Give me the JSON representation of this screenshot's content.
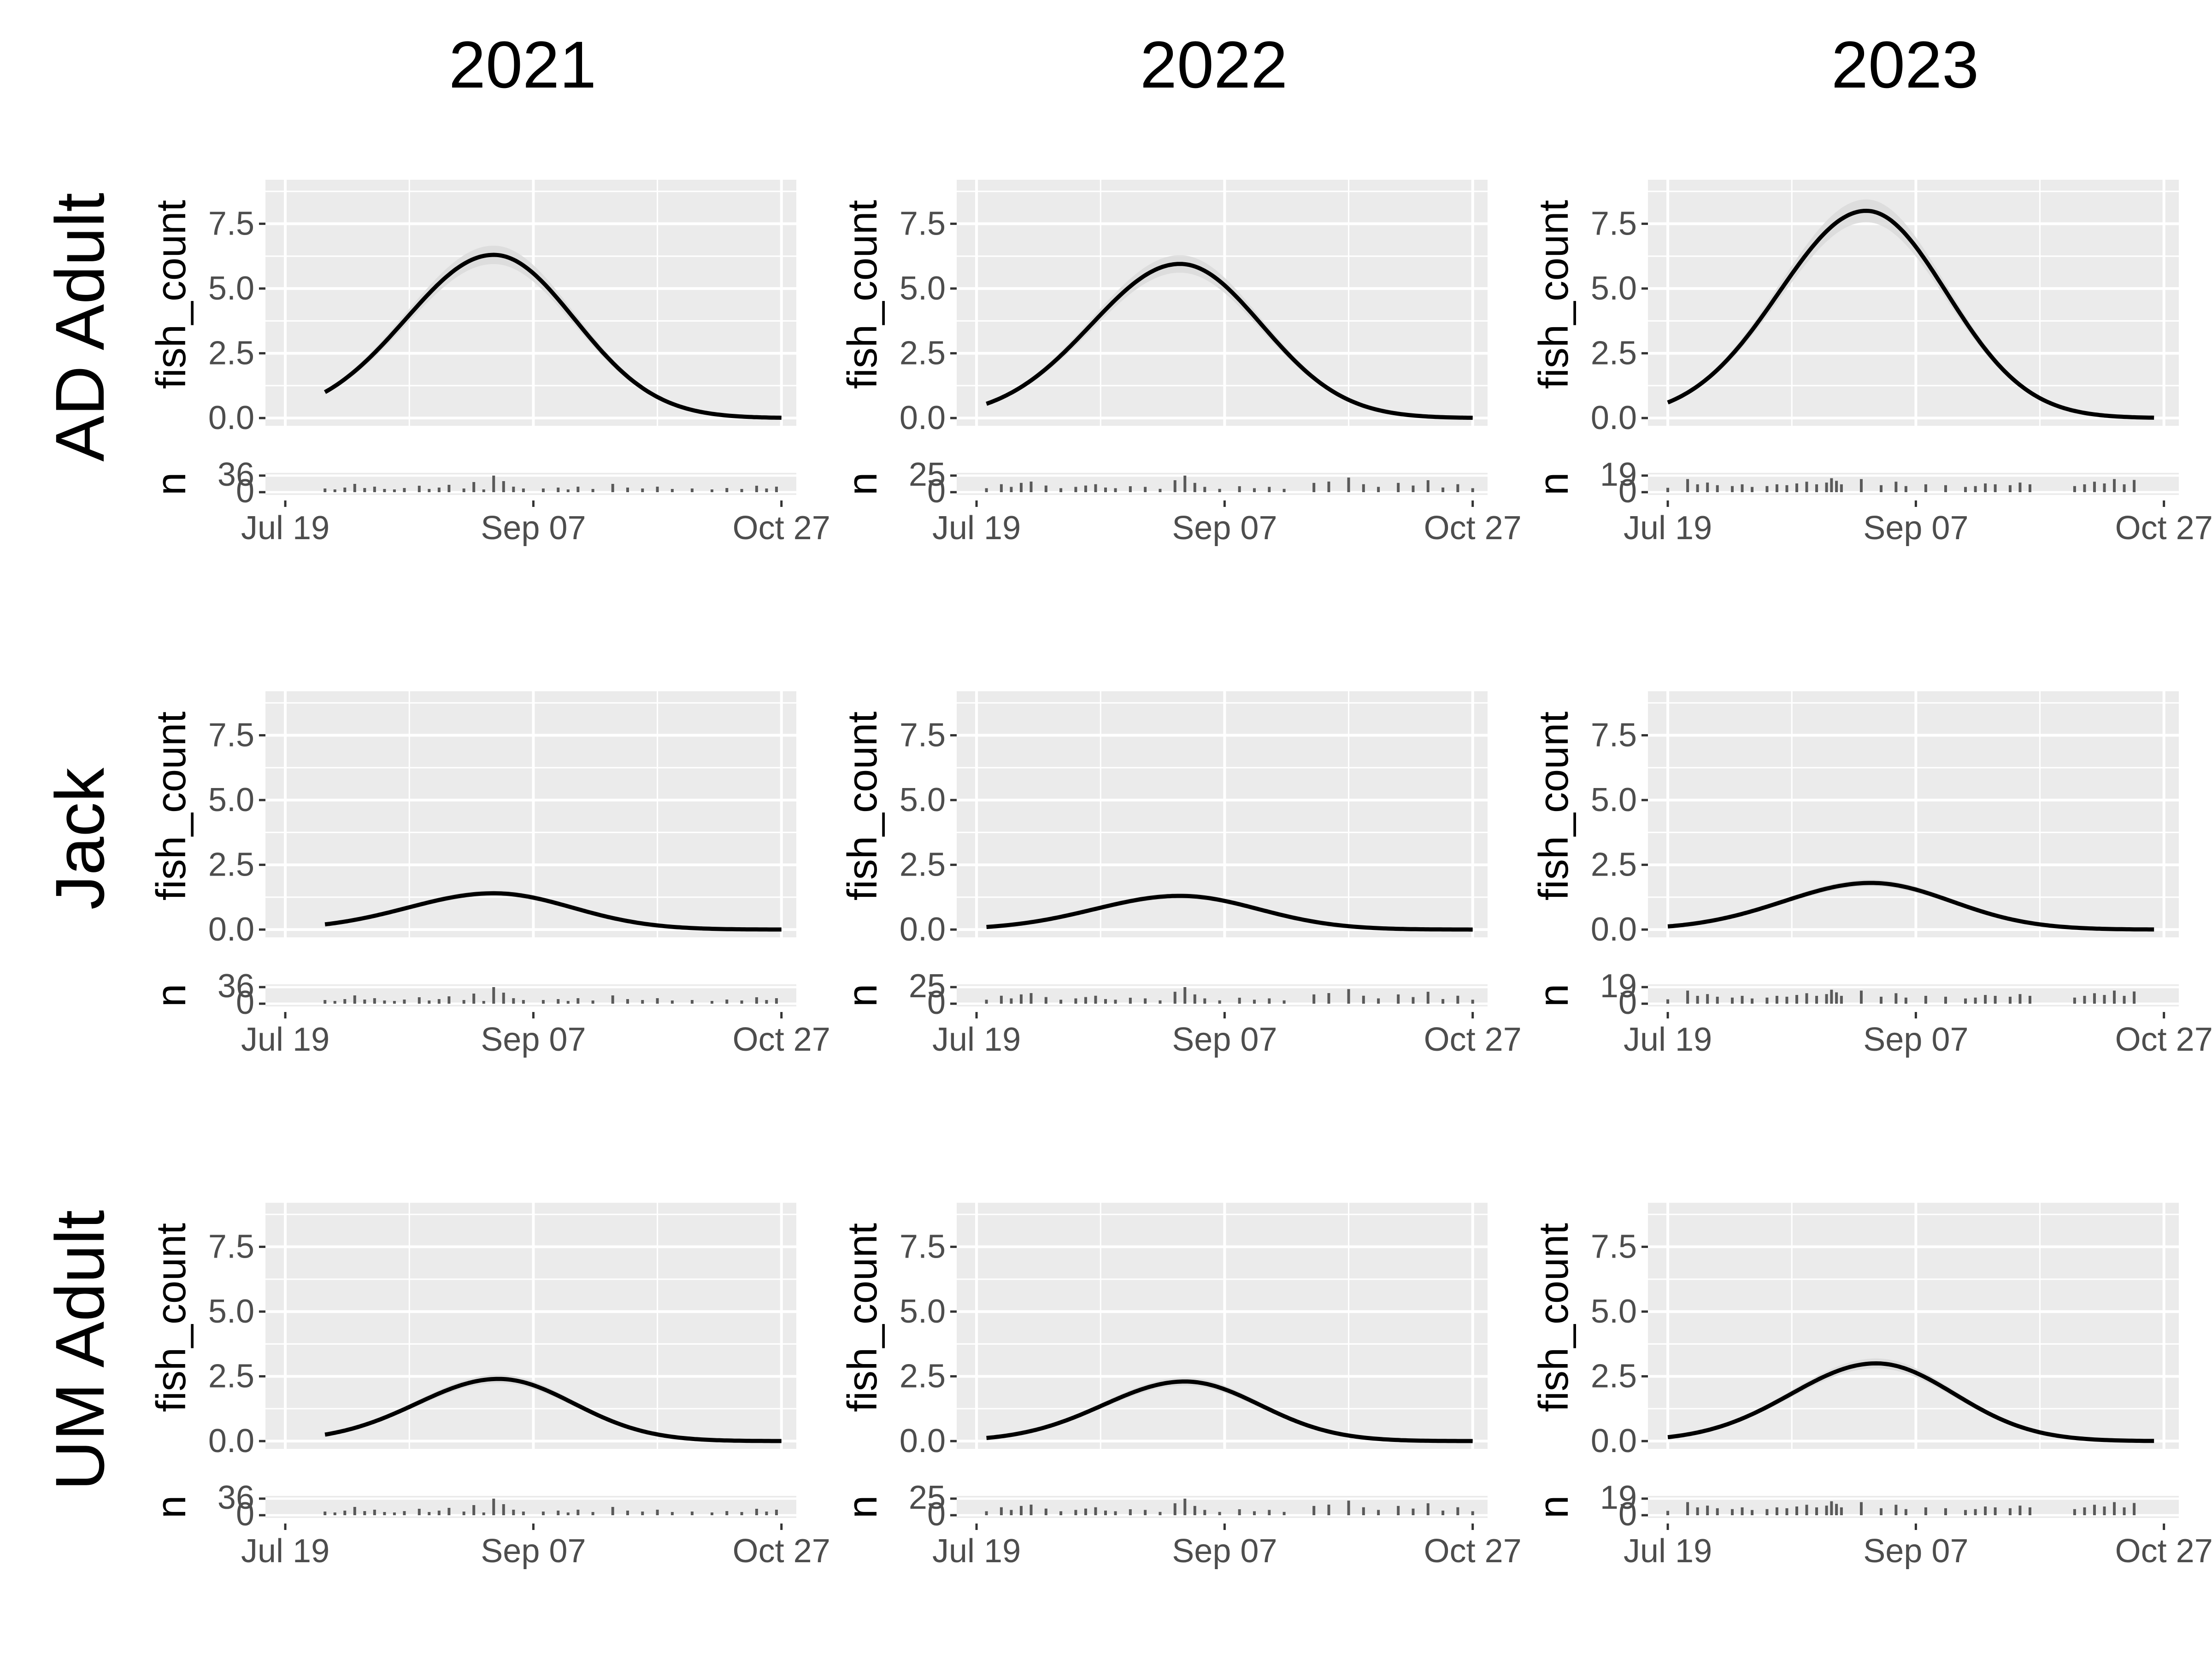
{
  "chart_data": {
    "type": "line",
    "layout": "facet-grid",
    "columns": [
      "2021",
      "2022",
      "2023"
    ],
    "rows": [
      "AD Adult",
      "Jack",
      "UM Adult"
    ],
    "x_axis": {
      "type": "date",
      "ticks": [
        "Jul 19",
        "Sep 07",
        "Oct 27"
      ],
      "tick_dates": [
        "07-19",
        "09-07",
        "10-27"
      ],
      "range": [
        "07-15",
        "10-30"
      ]
    },
    "y_axis": {
      "label": "fish_count",
      "ticks": [
        "0.0",
        "2.5",
        "5.0",
        "7.5"
      ],
      "ylim": [
        -0.3,
        9.2
      ]
    },
    "count_strip": {
      "label": "n",
      "ticks_by_year": {
        "2021": [
          "0",
          "36"
        ],
        "2022": [
          "0",
          "25"
        ],
        "2023": [
          "0",
          "19"
        ]
      }
    },
    "panels": [
      {
        "row": "AD Adult",
        "year": "2021",
        "x": [
          "07-27",
          "08-10",
          "08-24",
          "09-07",
          "09-21",
          "10-05",
          "10-19",
          "10-27"
        ],
        "y": [
          1.0,
          3.4,
          5.7,
          5.9,
          2.7,
          0.55,
          0.05,
          0.0
        ],
        "peak": {
          "date": "08-30",
          "value": 6.3
        }
      },
      {
        "row": "AD Adult",
        "year": "2022",
        "x": [
          "07-21",
          "08-04",
          "08-18",
          "09-01",
          "09-15",
          "09-29",
          "10-13",
          "10-27"
        ],
        "y": [
          0.55,
          1.8,
          4.2,
          5.8,
          3.8,
          1.0,
          0.15,
          0.02
        ],
        "peak": {
          "date": "08-29",
          "value": 5.95
        }
      },
      {
        "row": "AD Adult",
        "year": "2023",
        "x": [
          "07-19",
          "08-02",
          "08-16",
          "08-30",
          "09-13",
          "09-27",
          "10-11",
          "10-25"
        ],
        "y": [
          0.6,
          2.4,
          6.0,
          7.9,
          4.3,
          0.9,
          0.15,
          0.02
        ],
        "peak": {
          "date": "08-28",
          "value": 8.0
        }
      },
      {
        "row": "Jack",
        "year": "2021",
        "x": [
          "07-27",
          "08-10",
          "08-24",
          "09-07",
          "09-21",
          "10-05",
          "10-19",
          "10-27"
        ],
        "y": [
          0.2,
          0.75,
          1.3,
          1.2,
          0.55,
          0.12,
          0.01,
          0.0
        ],
        "peak": {
          "date": "08-30",
          "value": 1.4
        }
      },
      {
        "row": "Jack",
        "year": "2022",
        "x": [
          "07-21",
          "08-04",
          "08-18",
          "09-01",
          "09-15",
          "09-29",
          "10-13",
          "10-27"
        ],
        "y": [
          0.1,
          0.35,
          0.95,
          1.3,
          0.85,
          0.25,
          0.03,
          0.0
        ],
        "peak": {
          "date": "08-29",
          "value": 1.3
        }
      },
      {
        "row": "Jack",
        "year": "2023",
        "x": [
          "07-19",
          "08-02",
          "08-16",
          "08-30",
          "09-13",
          "09-27",
          "10-11",
          "10-25"
        ],
        "y": [
          0.12,
          0.45,
          1.35,
          1.8,
          1.05,
          0.3,
          0.04,
          0.0
        ],
        "peak": {
          "date": "08-29",
          "value": 1.8
        }
      },
      {
        "row": "UM Adult",
        "year": "2021",
        "x": [
          "07-27",
          "08-10",
          "08-24",
          "09-07",
          "09-21",
          "10-05",
          "10-19",
          "10-27"
        ],
        "y": [
          0.25,
          1.0,
          2.15,
          2.25,
          1.35,
          0.25,
          0.02,
          0.0
        ],
        "peak": {
          "date": "08-31",
          "value": 2.4
        }
      },
      {
        "row": "UM Adult",
        "year": "2022",
        "x": [
          "07-21",
          "08-04",
          "08-18",
          "09-01",
          "09-15",
          "09-29",
          "10-13",
          "10-27"
        ],
        "y": [
          0.12,
          0.55,
          1.6,
          2.25,
          1.65,
          0.4,
          0.04,
          0.0
        ],
        "peak": {
          "date": "08-30",
          "value": 2.3
        }
      },
      {
        "row": "UM Adult",
        "year": "2023",
        "x": [
          "07-19",
          "08-02",
          "08-16",
          "08-30",
          "09-13",
          "09-27",
          "10-11",
          "10-25"
        ],
        "y": [
          0.15,
          0.75,
          2.2,
          3.0,
          1.95,
          0.5,
          0.05,
          0.0
        ],
        "peak": {
          "date": "08-30",
          "value": 3.0
        }
      }
    ],
    "daily_counts": {
      "2021": {
        "max": 36,
        "dates": [
          "07-27",
          "07-29",
          "07-31",
          "08-02",
          "08-04",
          "08-06",
          "08-08",
          "08-10",
          "08-12",
          "08-15",
          "08-17",
          "08-19",
          "08-21",
          "08-24",
          "08-26",
          "08-28",
          "08-30",
          "09-01",
          "09-03",
          "09-05",
          "09-09",
          "09-12",
          "09-14",
          "09-16",
          "09-19",
          "09-23",
          "09-26",
          "09-29",
          "10-02",
          "10-05",
          "10-09",
          "10-13",
          "10-16",
          "10-19",
          "10-22",
          "10-24",
          "10-26"
        ],
        "n": [
          8,
          6,
          10,
          18,
          9,
          12,
          7,
          6,
          9,
          14,
          7,
          10,
          16,
          8,
          22,
          6,
          36,
          24,
          12,
          8,
          8,
          10,
          6,
          12,
          7,
          18,
          10,
          8,
          12,
          7,
          8,
          6,
          9,
          7,
          14,
          8,
          12
        ]
      },
      "2022": {
        "max": 25,
        "dates": [
          "07-21",
          "07-24",
          "07-26",
          "07-28",
          "07-30",
          "08-02",
          "08-05",
          "08-08",
          "08-10",
          "08-12",
          "08-14",
          "08-16",
          "08-19",
          "08-22",
          "08-25",
          "08-28",
          "08-30",
          "09-01",
          "09-03",
          "09-06",
          "09-10",
          "09-13",
          "09-16",
          "09-19",
          "09-25",
          "09-28",
          "10-02",
          "10-05",
          "10-08",
          "10-12",
          "10-15",
          "10-18",
          "10-21",
          "10-24",
          "10-27"
        ],
        "n": [
          6,
          12,
          8,
          14,
          16,
          10,
          6,
          8,
          10,
          12,
          7,
          6,
          9,
          8,
          5,
          18,
          25,
          14,
          8,
          5,
          9,
          6,
          8,
          5,
          14,
          16,
          22,
          12,
          8,
          14,
          10,
          18,
          7,
          12,
          6
        ]
      },
      "2023": {
        "max": 19,
        "dates": [
          "07-19",
          "07-23",
          "07-25",
          "07-27",
          "07-29",
          "08-01",
          "08-03",
          "08-05",
          "08-08",
          "08-10",
          "08-12",
          "08-14",
          "08-16",
          "08-18",
          "08-20",
          "08-21",
          "08-22",
          "08-23",
          "08-27",
          "08-31",
          "09-03",
          "09-05",
          "09-09",
          "09-13",
          "09-17",
          "09-19",
          "09-21",
          "09-23",
          "09-26",
          "09-28",
          "09-30",
          "10-09",
          "10-11",
          "10-13",
          "10-15",
          "10-17",
          "10-19",
          "10-21"
        ],
        "n": [
          5,
          15,
          9,
          11,
          8,
          7,
          9,
          6,
          7,
          9,
          8,
          10,
          12,
          9,
          11,
          16,
          13,
          9,
          15,
          8,
          12,
          7,
          9,
          8,
          6,
          7,
          10,
          9,
          8,
          11,
          9,
          7,
          9,
          12,
          10,
          15,
          9,
          14
        ]
      }
    }
  }
}
